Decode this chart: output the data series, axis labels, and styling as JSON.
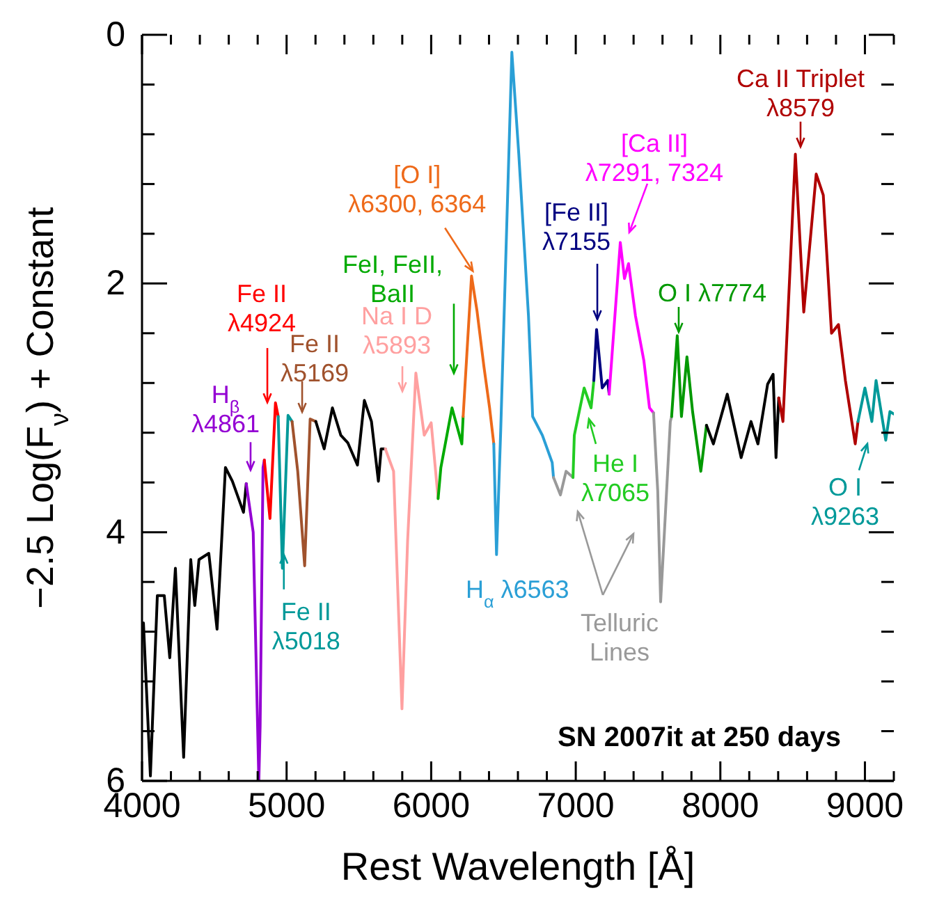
{
  "chart_data": {
    "type": "line",
    "xlabel": "Rest Wavelength [Å]",
    "ylabel": "−2.5 Log(F$_{ν}$) + Constant",
    "xlim": [
      4000,
      9200
    ],
    "ylim": [
      6,
      0
    ],
    "xticks": [
      4000,
      {
        "value": 4200,
        "label": null
      },
      {
        "value": 4400,
        "label": null
      },
      {
        "value": 4600,
        "label": null
      },
      {
        "value": 4800,
        "label": null
      },
      5000,
      {
        "value": 5200,
        "label": null
      },
      {
        "value": 5400,
        "label": null
      },
      {
        "value": 5600,
        "label": null
      },
      {
        "value": 5800,
        "label": null
      },
      6000,
      {
        "value": 6200,
        "label": null
      },
      {
        "value": 6400,
        "label": null
      },
      {
        "value": 6600,
        "label": null
      },
      {
        "value": 6800,
        "label": null
      },
      7000,
      {
        "value": 7200,
        "label": null
      },
      {
        "value": 7400,
        "label": null
      },
      {
        "value": 7600,
        "label": null
      },
      {
        "value": 7800,
        "label": null
      },
      8000,
      {
        "value": 8200,
        "label": null
      },
      {
        "value": 8400,
        "label": null
      },
      {
        "value": 8600,
        "label": null
      },
      {
        "value": 8800,
        "label": null
      },
      9000,
      {
        "value": 9200,
        "label": null
      }
    ],
    "yticks": [
      0,
      {
        "value": 0.4,
        "label": null
      },
      {
        "value": 0.8,
        "label": null
      },
      {
        "value": 1.2,
        "label": null
      },
      {
        "value": 1.6,
        "label": null
      },
      2,
      {
        "value": 2.4,
        "label": null
      },
      {
        "value": 2.8,
        "label": null
      },
      {
        "value": 3.2,
        "label": null
      },
      {
        "value": 3.6,
        "label": null
      },
      4,
      {
        "value": 4.4,
        "label": null
      },
      {
        "value": 4.8,
        "label": null
      },
      {
        "value": 5.2,
        "label": null
      },
      {
        "value": 5.6,
        "label": null
      },
      6
    ],
    "marker": "none",
    "line_style": "solid",
    "series": [
      {
        "color": "#000000",
        "x": [
          4010,
          4058,
          4106,
          4154,
          4192,
          4231,
          4288,
          4337,
          4365,
          4394,
          4462,
          4519,
          4577,
          4625,
          4702,
          4721
        ],
        "values": [
          4.73,
          5.96,
          4.51,
          4.51,
          5.01,
          4.29,
          5.81,
          4.22,
          4.59,
          4.22,
          4.17,
          4.78,
          3.48,
          3.59,
          3.84,
          3.61
        ]
      },
      {
        "color": "#9400d3",
        "x": [
          4721,
          4769,
          4808,
          4817,
          4837,
          4846
        ],
        "values": [
          3.61,
          4.0,
          6.0,
          5.56,
          3.48,
          3.42
        ]
      },
      {
        "color": "#ff0000",
        "x": [
          4846,
          4885,
          4923,
          4942
        ],
        "values": [
          3.42,
          3.89,
          2.96,
          3.07
        ]
      },
      {
        "color": "#009999",
        "x": [
          4942,
          4971,
          5010,
          5038
        ],
        "values": [
          3.07,
          4.29,
          3.06,
          3.11
        ]
      },
      {
        "color": "#a0522d",
        "x": [
          5038,
          5077,
          5125,
          5163,
          5202
        ],
        "values": [
          3.11,
          3.51,
          4.27,
          3.09,
          3.11
        ]
      },
      {
        "color": "#000000",
        "x": [
          5202,
          5260,
          5317,
          5375,
          5423,
          5490,
          5538,
          5587,
          5635,
          5654,
          5683
        ],
        "values": [
          3.11,
          3.33,
          3.0,
          3.22,
          3.28,
          3.46,
          2.94,
          3.11,
          3.59,
          3.33,
          3.33
        ]
      },
      {
        "color": "#ffa0a0",
        "x": [
          5683,
          5740,
          5798,
          5837,
          5894,
          5952,
          6000,
          6048
        ],
        "values": [
          3.33,
          3.51,
          5.42,
          4.07,
          2.72,
          3.22,
          3.12,
          3.73
        ]
      },
      {
        "color": "#00aa00",
        "x": [
          6048,
          6067,
          6144,
          6212,
          6221
        ],
        "values": [
          3.73,
          3.48,
          3.0,
          3.29,
          3.07
        ]
      },
      {
        "color": "#ee6a1a",
        "x": [
          6221,
          6279,
          6317,
          6365,
          6404,
          6433
        ],
        "values": [
          3.07,
          1.94,
          2.22,
          2.67,
          3.0,
          3.29
        ]
      },
      {
        "color": "#2a9fd6",
        "x": [
          6433,
          6452,
          6481,
          6558,
          6606,
          6673,
          6702,
          6769,
          6837,
          6846
        ],
        "values": [
          3.29,
          4.18,
          3.18,
          0.14,
          0.96,
          2.26,
          3.07,
          3.22,
          3.44,
          3.56
        ]
      },
      {
        "color": "#999999",
        "x": [
          6846,
          6894,
          6933,
          6981
        ],
        "values": [
          3.56,
          3.7,
          3.51,
          3.56
        ]
      },
      {
        "color": "#22cc22",
        "x": [
          6981,
          6990,
          7058,
          7106,
          7125
        ],
        "values": [
          3.56,
          3.22,
          2.84,
          3.0,
          2.78
        ]
      },
      {
        "color": "#000080",
        "x": [
          7125,
          7144,
          7183,
          7221,
          7231
        ],
        "values": [
          2.78,
          2.37,
          2.84,
          2.78,
          2.89
        ]
      },
      {
        "color": "#ff00ff",
        "x": [
          7231,
          7308,
          7337,
          7365,
          7413,
          7471,
          7510,
          7538
        ],
        "values": [
          2.89,
          1.67,
          1.96,
          1.84,
          2.26,
          2.62,
          3.0,
          3.04
        ]
      },
      {
        "color": "#999999",
        "x": [
          7538,
          7567,
          7587,
          7615,
          7654,
          7663
        ],
        "values": [
          3.04,
          3.67,
          4.56,
          3.96,
          3.11,
          3.07
        ]
      },
      {
        "color": "#009900",
        "x": [
          7663,
          7702,
          7731,
          7769,
          7808,
          7865,
          7904
        ],
        "values": [
          3.07,
          2.42,
          3.07,
          2.59,
          3.03,
          3.51,
          3.14
        ]
      },
      {
        "color": "#000000",
        "x": [
          7904,
          7952,
          8048,
          8144,
          8212,
          8260,
          8327,
          8365,
          8385,
          8404
        ],
        "values": [
          3.14,
          3.29,
          2.89,
          3.4,
          3.11,
          3.29,
          2.81,
          2.73,
          3.4,
          2.92
        ]
      },
      {
        "color": "#b00000",
        "x": [
          8404,
          8433,
          8519,
          8577,
          8663,
          8712,
          8769,
          8817,
          8865,
          8933,
          8952
        ],
        "values": [
          2.92,
          3.11,
          0.96,
          2.23,
          1.12,
          1.29,
          2.4,
          2.33,
          2.78,
          3.29,
          3.11
        ]
      },
      {
        "color": "#009999",
        "x": [
          8952,
          9000,
          9048,
          9077,
          9144,
          9173,
          9200
        ],
        "values": [
          3.11,
          2.84,
          3.11,
          2.78,
          3.26,
          3.03,
          3.05
        ]
      }
    ],
    "annotations": [
      "Fe II\nλ4924",
      "Fe II\nλ5169",
      "H$_{β}$\nλ4861",
      {
        "text": "Fe II\nλ5018",
        "x": 4981,
        "y": 4.18
      },
      "Na I D\nλ5893",
      "FeI, FeII,\nBaII",
      {
        "text": "[O I]\nλ6300, 6364",
        "x": 6288,
        "y": 1.9
      },
      "[Fe II]\nλ7155",
      "[Ca II]\nλ7291, 7324",
      {
        "text": "O I λ7774",
        "x": 7712,
        "y": 2.39
      },
      "Ca II Triplet\nλ8579",
      "He I\nλ7065",
      "O I\nλ9263",
      {
        "text": "H$_{α}$ λ6563",
        "x": 6452,
        "y": 4.18
      },
      "Telluric\nLines",
      "SN 2007it at 250 days"
    ]
  }
}
